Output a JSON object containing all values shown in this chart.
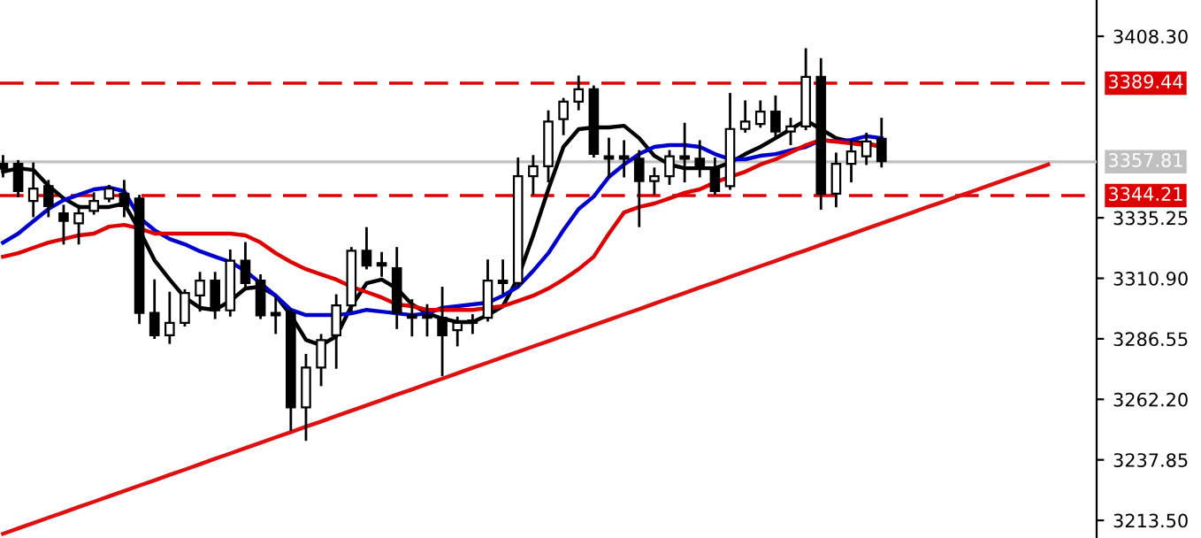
{
  "chart_data": {
    "type": "candlestick",
    "categories": [
      null,
      null,
      null,
      null,
      null,
      null,
      null,
      null,
      null,
      null,
      null,
      null,
      null,
      null,
      null,
      null,
      null,
      null,
      null,
      null,
      null,
      null,
      null,
      null,
      null,
      null,
      null,
      null,
      null,
      null,
      null,
      null,
      null,
      null,
      null,
      null,
      null,
      null,
      null,
      null,
      null,
      null,
      null,
      null,
      null,
      null,
      null,
      null,
      null,
      null,
      null,
      null,
      null,
      null,
      null,
      null,
      null,
      null,
      null,
      null,
      null,
      null,
      null,
      null,
      null,
      null,
      null,
      null,
      null,
      null
    ],
    "ohlc": [
      [
        3357,
        3360,
        3352,
        3355
      ],
      [
        3357,
        3358,
        3344,
        3346
      ],
      [
        3342,
        3357,
        3336,
        3347
      ],
      [
        3348,
        3350,
        3336,
        3340
      ],
      [
        3337,
        3340,
        3325,
        3334
      ],
      [
        3333,
        3340,
        3325,
        3337
      ],
      [
        3338,
        3345,
        3337,
        3342
      ],
      [
        3343,
        3348,
        3342,
        3347
      ],
      [
        3345,
        3350,
        3336,
        3340
      ],
      [
        3343,
        3344,
        3293,
        3297
      ],
      [
        3297,
        3310,
        3287,
        3288
      ],
      [
        3288,
        3305,
        3285,
        3293
      ],
      [
        3293,
        3306,
        3292,
        3305
      ],
      [
        3304,
        3313,
        3298,
        3310
      ],
      [
        3310,
        3313,
        3295,
        3298
      ],
      [
        3298,
        3322,
        3296,
        3318
      ],
      [
        3318,
        3325,
        3307,
        3309
      ],
      [
        3310,
        3312,
        3295,
        3296
      ],
      [
        3297,
        3303,
        3289,
        3296
      ],
      [
        3297,
        3298,
        3250,
        3259
      ],
      [
        3259,
        3280,
        3246,
        3275
      ],
      [
        3275,
        3288,
        3268,
        3286
      ],
      [
        3288,
        3304,
        3275,
        3300
      ],
      [
        3300,
        3323,
        3298,
        3322
      ],
      [
        3322,
        3331,
        3315,
        3316
      ],
      [
        3317,
        3321,
        3312,
        3316
      ],
      [
        3315,
        3323,
        3291,
        3297
      ],
      [
        3296,
        3302,
        3288,
        3295
      ],
      [
        3296,
        3300,
        3288,
        3295
      ],
      [
        3295,
        3307,
        3272,
        3288
      ],
      [
        3290,
        3295,
        3284,
        3293
      ],
      [
        3294,
        3296,
        3289,
        3293
      ],
      [
        3295,
        3318,
        3294,
        3310
      ],
      [
        3310,
        3318,
        3305,
        3309
      ],
      [
        3309,
        3359,
        3308,
        3352
      ],
      [
        3352,
        3360,
        3345,
        3356
      ],
      [
        3356,
        3378,
        3350,
        3374
      ],
      [
        3375,
        3383,
        3369,
        3382
      ],
      [
        3382,
        3392,
        3379,
        3387
      ],
      [
        3387,
        3388,
        3360,
        3361
      ],
      [
        3360,
        3367,
        3352,
        3359
      ],
      [
        3360,
        3366,
        3352,
        3359
      ],
      [
        3359,
        3362,
        3332,
        3350
      ],
      [
        3350,
        3355,
        3345,
        3352
      ],
      [
        3352,
        3362,
        3349,
        3360
      ],
      [
        3360,
        3373,
        3350,
        3359
      ],
      [
        3359,
        3366,
        3352,
        3355
      ],
      [
        3355,
        3359,
        3345,
        3346
      ],
      [
        3348,
        3385,
        3347,
        3371
      ],
      [
        3371,
        3382,
        3370,
        3374
      ],
      [
        3373,
        3382,
        3372,
        3378
      ],
      [
        3378,
        3384,
        3368,
        3370
      ],
      [
        3370,
        3375,
        3365,
        3372
      ],
      [
        3372,
        3403,
        3371,
        3392
      ],
      [
        3392,
        3399,
        3339,
        3345
      ],
      [
        3345,
        3361,
        3340,
        3357
      ],
      [
        3357,
        3366,
        3350,
        3362
      ],
      [
        3360,
        3369,
        3357,
        3366
      ],
      [
        3367,
        3375,
        3356,
        3358
      ],
      null,
      null,
      null,
      null,
      null,
      null,
      null,
      null,
      null,
      null,
      null
    ],
    "series": [
      {
        "type": "line",
        "color": "#000000",
        "values": [
          3353.8,
          3355.2,
          3354.5,
          3348.1,
          3343.1,
          3339.6,
          3339.6,
          3339.6,
          3341.0,
          3330.3,
          3318.2,
          3310.4,
          3303.2,
          3299.0,
          3298.2,
          3301.8,
          3306.8,
          3307.5,
          3303.9,
          3296.1,
          3286.1,
          3284.0,
          3287.6,
          3299.7,
          3308.9,
          3310.4,
          3306.8,
          3300.4,
          3296.8,
          3294.7,
          3293.3,
          3293.3,
          3296.1,
          3299.7,
          3311.1,
          3328.2,
          3346.7,
          3363.8,
          3370.9,
          3371.6,
          3371.6,
          3372.3,
          3367.3,
          3360.2,
          3356.7,
          3355.2,
          3355.2,
          3355.2,
          3357.4,
          3360.9,
          3363.8,
          3367.3,
          3370.9,
          3374.5,
          3370.9,
          3367.3,
          3365.9,
          3365.2,
          3363.8,
          null,
          null,
          null,
          null,
          null,
          null,
          null,
          null,
          null,
          null,
          null
        ]
      },
      {
        "type": "line",
        "color": "#0000cc",
        "values": [
          3325.3,
          3328.9,
          3333.9,
          3338.8,
          3342.4,
          3344.5,
          3346.7,
          3347.4,
          3346.0,
          3335.3,
          3330.3,
          3326.7,
          3324.6,
          3321.8,
          3319.6,
          3317.5,
          3313.9,
          3308.9,
          3303.9,
          3298.2,
          3296.1,
          3296.1,
          3296.1,
          3296.8,
          3298.2,
          3297.5,
          3296.8,
          3296.1,
          3296.8,
          3299.0,
          3299.7,
          3300.4,
          3301.1,
          3303.9,
          3307.5,
          3313.9,
          3321.0,
          3330.3,
          3338.8,
          3343.8,
          3351.7,
          3356.7,
          3360.9,
          3363.8,
          3364.5,
          3364.5,
          3363.8,
          3360.9,
          3358.8,
          3358.8,
          3360.2,
          3360.9,
          3362.4,
          3363.8,
          3366.6,
          3365.9,
          3366.6,
          3368.1,
          3367.3,
          null,
          null,
          null,
          null,
          null,
          null,
          null,
          null,
          null,
          null,
          null
        ]
      },
      {
        "type": "line",
        "color": "#dd0000",
        "values": [
          3319.6,
          3321.0,
          3323.2,
          3325.3,
          3326.7,
          3328.2,
          3328.9,
          3331.7,
          3332.4,
          3331.0,
          3328.9,
          3328.9,
          3328.9,
          3328.9,
          3328.9,
          3328.9,
          3328.2,
          3325.3,
          3321.0,
          3317.5,
          3314.6,
          3312.5,
          3310.4,
          3307.5,
          3305.4,
          3303.2,
          3300.4,
          3299.7,
          3298.2,
          3298.2,
          3298.2,
          3298.2,
          3299.0,
          3299.7,
          3301.8,
          3303.9,
          3306.8,
          3310.4,
          3314.6,
          3319.6,
          3328.9,
          3337.4,
          3339.6,
          3341.0,
          3343.1,
          3345.3,
          3346.7,
          3349.5,
          3351.7,
          3353.8,
          3356.7,
          3358.8,
          3361.6,
          3364.5,
          3366.6,
          3365.9,
          3365.2,
          3364.5,
          3364.5,
          null,
          null,
          null,
          null,
          null,
          null,
          null,
          null,
          null,
          null,
          null
        ]
      },
      {
        "type": "line",
        "color": "#dd1111",
        "values": [
          3208.1,
          3210.3,
          3212.4,
          3214.6,
          3216.7,
          3218.9,
          3221.0,
          3223.2,
          3225.3,
          3227.5,
          3229.6,
          3231.8,
          3233.9,
          3236.1,
          3238.3,
          3240.4,
          3242.6,
          3244.7,
          3246.9,
          3249.0,
          3251.2,
          3253.3,
          3255.5,
          3257.6,
          3259.8,
          3261.9,
          3264.1,
          3266.2,
          3268.4,
          3270.5,
          3272.7,
          3274.9,
          3277.0,
          3279.2,
          3281.3,
          3283.5,
          3285.6,
          3287.8,
          3289.9,
          3292.1,
          3294.2,
          3296.4,
          3298.5,
          3300.7,
          3302.9,
          3305.0,
          3307.2,
          3309.3,
          3311.5,
          3313.6,
          3315.8,
          3317.9,
          3320.1,
          3322.2,
          3324.4,
          3326.5,
          3328.7,
          3330.9,
          3333.0,
          3335.2,
          3337.3,
          3339.5,
          3341.6,
          3343.8,
          3345.9,
          3348.1,
          3350.2,
          3352.4,
          3354.5,
          3356.7
        ]
      }
    ],
    "ylim": [
      3206.4,
      3422.9
    ],
    "yticks": [
      {
        "value": 3213.5,
        "label": "3213.50"
      },
      {
        "value": 3237.85,
        "label": "3237.85"
      },
      {
        "value": 3262.2,
        "label": "3262.20"
      },
      {
        "value": 3286.55,
        "label": "3286.55"
      },
      {
        "value": 3310.9,
        "label": "3310.90"
      },
      {
        "value": 3335.25,
        "label": "3335.25"
      },
      {
        "value": 3408.3,
        "label": "3408.30"
      }
    ],
    "ref_lines": [
      {
        "axis": "y",
        "value": 3389.44,
        "label": "3389.44",
        "color": "#dd0000",
        "line_style": "dashed"
      },
      {
        "axis": "y",
        "value": 3357.81,
        "label": "3357.81",
        "color": "#c0c0c0",
        "line_style": "solid"
      },
      {
        "axis": "y",
        "value": 3344.21,
        "label": "3344.21",
        "color": "#dd0000",
        "line_style": "dashed"
      }
    ],
    "tick_labels": "y",
    "grid": false,
    "legend": false
  }
}
